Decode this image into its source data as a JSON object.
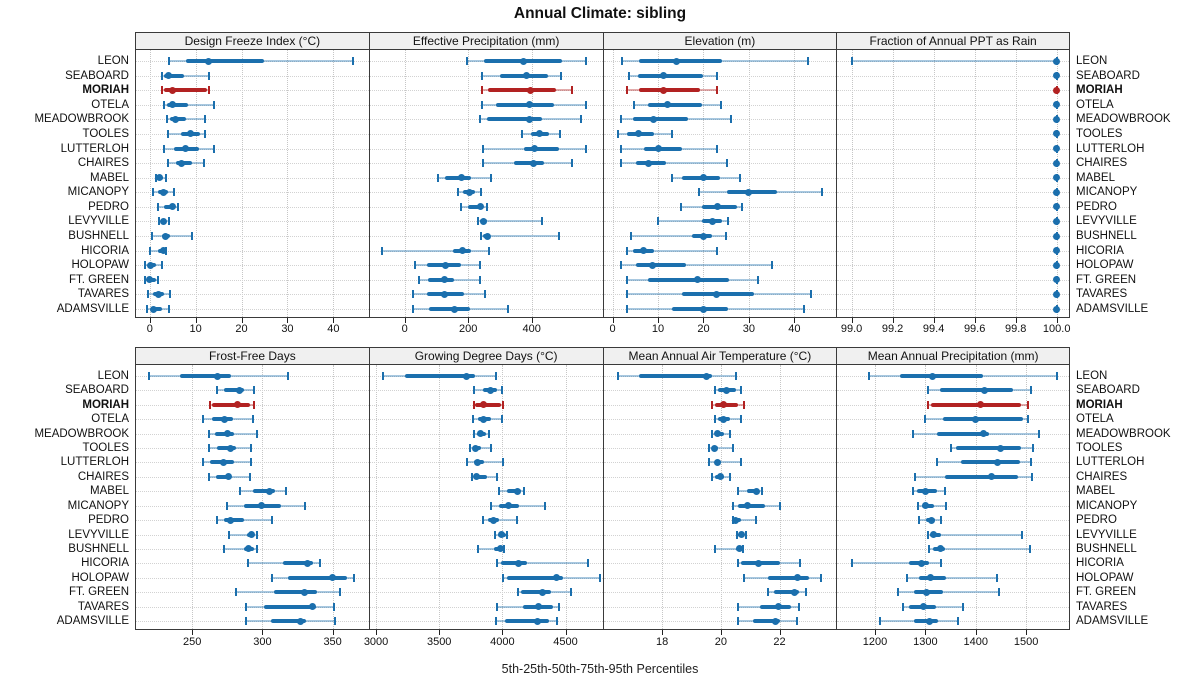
{
  "title": "Annual Climate: sibling",
  "caption": "5th-25th-50th-75th-95th Percentiles",
  "highlight_station": "MORIAH",
  "colors": {
    "point": "#1b6fad",
    "point_light": "rgba(27,111,173,0.38)",
    "highlight": "#b22222",
    "highlight_light": "rgba(178,34,34,0.38)",
    "header_bg": "#f0f0f0",
    "grid": "#c6c6c6",
    "border": "#3a3a3a"
  },
  "stations": [
    "LEON",
    "SEABOARD",
    "MORIAH",
    "OTELA",
    "MEADOWBROOK",
    "TOOLES",
    "LUTTERLOH",
    "CHAIRES",
    "MABEL",
    "MICANOPY",
    "PEDRO",
    "LEVYVILLE",
    "BUSHNELL",
    "HICORIA",
    "HOLOPAW",
    "FT. GREEN",
    "TAVARES",
    "ADAMSVILLE"
  ],
  "chart_data": {
    "type": "dotplot-trellis",
    "percentile_levels": [
      5,
      25,
      50,
      75,
      95
    ],
    "layout": "2 rows x 4 columns",
    "panels": [
      {
        "title": "Design Freeze Index (°C)",
        "xlim": [
          -3,
          47.5
        ],
        "ticks": [
          0,
          10,
          20,
          30,
          40
        ],
        "tick_labels": [
          "0",
          "10",
          "20",
          "30",
          "40"
        ],
        "series": [
          [
            4.1,
            7.8,
            12.9,
            25,
            44.2
          ],
          [
            2.7,
            3.2,
            4,
            7.5,
            12.8
          ],
          [
            2.7,
            3.2,
            4.9,
            12.5,
            13
          ],
          [
            3,
            3.7,
            4.9,
            8.3,
            14
          ],
          [
            3.7,
            4.5,
            5.7,
            8,
            12
          ],
          [
            3.9,
            6.9,
            8.8,
            10.9,
            12.1
          ],
          [
            3,
            5.2,
            7.7,
            10.7,
            14
          ],
          [
            3.9,
            5.7,
            7,
            9.2,
            11.8
          ],
          [
            1.3,
            1.7,
            2.2,
            2.8,
            3.5
          ],
          [
            0.6,
            1.7,
            2.9,
            3.9,
            5.2
          ],
          [
            1.9,
            3.2,
            4.9,
            5.6,
            6.2
          ],
          [
            2,
            2.5,
            2.9,
            3.6,
            4.2
          ],
          [
            0.4,
            2.7,
            3.5,
            4.4,
            9.2
          ],
          [
            0,
            1.9,
            2.9,
            3.4,
            3.5
          ],
          [
            -1.1,
            -0.4,
            0.1,
            1.4,
            2.7
          ],
          [
            -1.1,
            -0.6,
            -0.1,
            1.4,
            1.9
          ],
          [
            -0.3,
            0.6,
            2,
            3.2,
            4.4
          ],
          [
            -0.6,
            0.2,
            0.9,
            2.7,
            4.2
          ]
        ]
      },
      {
        "title": "Effective Precipitation (mm)",
        "xlim": [
          -110,
          620
        ],
        "ticks": [
          0,
          200,
          400
        ],
        "tick_labels": [
          "0",
          "200",
          "400"
        ],
        "series": [
          [
            195,
            250,
            375,
            497,
            570
          ],
          [
            243,
            300,
            385,
            450,
            492
          ],
          [
            245,
            262,
            395,
            478,
            528
          ],
          [
            245,
            287,
            394,
            470,
            572
          ],
          [
            236,
            258,
            392,
            432,
            554
          ],
          [
            369,
            398,
            426,
            455,
            489
          ],
          [
            247,
            377,
            410,
            486,
            570
          ],
          [
            247,
            344,
            405,
            440,
            528
          ],
          [
            104,
            127,
            179,
            210,
            273
          ],
          [
            167,
            184,
            203,
            221,
            240
          ],
          [
            177,
            200,
            238,
            247,
            260
          ],
          [
            231,
            236,
            247,
            258,
            434
          ],
          [
            241,
            247,
            260,
            268,
            486
          ],
          [
            -70,
            153,
            182,
            210,
            266
          ],
          [
            33,
            70,
            130,
            179,
            236
          ],
          [
            44,
            72,
            125,
            155,
            238
          ],
          [
            27,
            70,
            126,
            188,
            252
          ],
          [
            25,
            78,
            156,
            205,
            327
          ]
        ]
      },
      {
        "title": "Elevation (m)",
        "xlim": [
          -2,
          49
        ],
        "ticks": [
          0,
          10,
          20,
          30,
          40
        ],
        "tick_labels": [
          "0",
          "10",
          "20",
          "30",
          "40"
        ],
        "series": [
          [
            2,
            5.8,
            14,
            24,
            43
          ],
          [
            3.7,
            5.7,
            11.1,
            20,
            22.9
          ],
          [
            3.2,
            5.9,
            11.2,
            19.3,
            22.9
          ],
          [
            4.7,
            7.7,
            12,
            19.7,
            23.9
          ],
          [
            1.9,
            4.5,
            9,
            16.7,
            26.1
          ],
          [
            1.1,
            3.1,
            5.8,
            9.1,
            13.1
          ],
          [
            1.9,
            6.9,
            10,
            15.3,
            22.9
          ],
          [
            1.9,
            5.1,
            7.9,
            11.7,
            25.1
          ],
          [
            13,
            15.3,
            20,
            23.7,
            28.1
          ],
          [
            19,
            25.2,
            30,
            36.1,
            46
          ],
          [
            15.1,
            19.7,
            23.1,
            27.3,
            28.5
          ],
          [
            10,
            19.7,
            22,
            24.1,
            25.4
          ],
          [
            4,
            17.4,
            20,
            21.9,
            24.9
          ],
          [
            3.1,
            4.5,
            6.9,
            9.1,
            22.9
          ],
          [
            1.9,
            5.2,
            8.7,
            16.2,
            35
          ],
          [
            3.2,
            7.9,
            18.6,
            25.7,
            32
          ],
          [
            3.1,
            15.3,
            22.9,
            31.2,
            43.7
          ],
          [
            3.1,
            13,
            20,
            25.5,
            42.1
          ]
        ]
      },
      {
        "title": "Fraction of Annual PPT as Rain",
        "xlim": [
          98.93,
          100.06
        ],
        "ticks": [
          99.0,
          99.2,
          99.4,
          99.6,
          99.8,
          100.0
        ],
        "tick_labels": [
          "99.0",
          "99.2",
          "99.4",
          "99.6",
          "99.8",
          "100.0"
        ],
        "series": [
          [
            99.0,
            100,
            100,
            100,
            100
          ],
          [
            100,
            100,
            100,
            100,
            100
          ],
          [
            100,
            100,
            100,
            100,
            100
          ],
          [
            100,
            100,
            100,
            100,
            100
          ],
          [
            100,
            100,
            100,
            100,
            100
          ],
          [
            100,
            100,
            100,
            100,
            100
          ],
          [
            100,
            100,
            100,
            100,
            100
          ],
          [
            100,
            100,
            100,
            100,
            100
          ],
          [
            100,
            100,
            100,
            100,
            100
          ],
          [
            100,
            100,
            100,
            100,
            100
          ],
          [
            100,
            100,
            100,
            100,
            100
          ],
          [
            100,
            100,
            100,
            100,
            100
          ],
          [
            100,
            100,
            100,
            100,
            100
          ],
          [
            100,
            100,
            100,
            100,
            100
          ],
          [
            100,
            100,
            100,
            100,
            100
          ],
          [
            100,
            100,
            100,
            100,
            100
          ],
          [
            100,
            100,
            100,
            100,
            100
          ],
          [
            100,
            100,
            100,
            100,
            100
          ]
        ]
      },
      {
        "title": "Frost-Free Days",
        "xlim": [
          210,
          375
        ],
        "ticks": [
          250,
          300,
          350
        ],
        "tick_labels": [
          "250",
          "300",
          "350"
        ],
        "series": [
          [
            219,
            241,
            268,
            278,
            318
          ],
          [
            268,
            273,
            284,
            287,
            294
          ],
          [
            263,
            264,
            282,
            291,
            294
          ],
          [
            258,
            264,
            273,
            279,
            293
          ],
          [
            262,
            266,
            275,
            280,
            296
          ],
          [
            262,
            268,
            277,
            281,
            292
          ],
          [
            258,
            263,
            272,
            280,
            292
          ],
          [
            262,
            267,
            276,
            278,
            291
          ],
          [
            284,
            293,
            305,
            309,
            317
          ],
          [
            275,
            287,
            299,
            313,
            330
          ],
          [
            268,
            273,
            277,
            287,
            307
          ],
          [
            276,
            289,
            292,
            294,
            296
          ],
          [
            273,
            287,
            290,
            294,
            296
          ],
          [
            290,
            315,
            332,
            336,
            341
          ],
          [
            307,
            318,
            350,
            360,
            365
          ],
          [
            281,
            308,
            330,
            339,
            355
          ],
          [
            288,
            301,
            336,
            338,
            351
          ],
          [
            288,
            306,
            327,
            331,
            352
          ]
        ]
      },
      {
        "title": "Growing Degree Days (°C)",
        "xlim": [
          2950,
          4785
        ],
        "ticks": [
          3000,
          3500,
          4000,
          4500
        ],
        "tick_labels": [
          "3000",
          "3500",
          "4000",
          "4500"
        ],
        "series": [
          [
            3051,
            3228,
            3714,
            3784,
            3947
          ],
          [
            3773,
            3844,
            3904,
            3960,
            4000
          ],
          [
            3773,
            3781,
            3850,
            3990,
            4005
          ],
          [
            3765,
            3805,
            3851,
            3908,
            4000
          ],
          [
            3778,
            3799,
            3825,
            3869,
            3896
          ],
          [
            3747,
            3773,
            3791,
            3830,
            3908
          ],
          [
            3721,
            3778,
            3807,
            3856,
            4008
          ],
          [
            3757,
            3773,
            3799,
            3877,
            3961
          ],
          [
            3973,
            4038,
            4116,
            4148,
            4174
          ],
          [
            3908,
            3973,
            4046,
            4129,
            4337
          ],
          [
            3844,
            3883,
            3929,
            3973,
            4116
          ],
          [
            3942,
            3965,
            3992,
            4025,
            4038
          ],
          [
            3805,
            3934,
            3982,
            4005,
            4015
          ],
          [
            3955,
            3986,
            4129,
            4194,
            4675
          ],
          [
            4008,
            4038,
            4428,
            4480,
            4770
          ],
          [
            4122,
            4148,
            4319,
            4389,
            4545
          ],
          [
            3955,
            4163,
            4285,
            4402,
            4449
          ],
          [
            3947,
            4018,
            4277,
            4371,
            4434
          ]
        ]
      },
      {
        "title": "Mean Annual Air Temperature (°C)",
        "xlim": [
          16,
          23.9
        ],
        "ticks": [
          18,
          20,
          22
        ],
        "tick_labels": [
          "18",
          "20",
          "22"
        ],
        "series": [
          [
            16.5,
            17.2,
            19.5,
            19.7,
            20.5
          ],
          [
            19.8,
            19.9,
            20.2,
            20.5,
            20.7
          ],
          [
            19.7,
            19.8,
            20.1,
            20.6,
            20.8
          ],
          [
            19.8,
            19.9,
            20.1,
            20.3,
            20.7
          ],
          [
            19.7,
            19.8,
            19.9,
            20.1,
            20.3
          ],
          [
            19.6,
            19.7,
            19.8,
            19.9,
            20.4
          ],
          [
            19.6,
            19.8,
            19.9,
            20.0,
            20.7
          ],
          [
            19.7,
            19.8,
            20.0,
            20.1,
            20.3
          ],
          [
            20.6,
            20.9,
            21.2,
            21.3,
            21.4
          ],
          [
            20.4,
            20.6,
            20.9,
            21.5,
            22.0
          ],
          [
            20.4,
            20.45,
            20.5,
            20.7,
            21.2
          ],
          [
            20.55,
            20.6,
            20.7,
            20.8,
            20.85
          ],
          [
            19.8,
            20.5,
            20.65,
            20.7,
            20.75
          ],
          [
            20.6,
            20.7,
            21.3,
            22.0,
            22.7
          ],
          [
            20.8,
            21.6,
            22.6,
            23.0,
            23.4
          ],
          [
            21.6,
            21.8,
            22.5,
            22.65,
            22.9
          ],
          [
            20.6,
            21.35,
            21.95,
            22.4,
            22.65
          ],
          [
            20.6,
            21.1,
            21.85,
            22.0,
            22.6
          ]
        ]
      },
      {
        "title": "Mean Annual Precipitation (mm)",
        "xlim": [
          1125,
          1585
        ],
        "ticks": [
          1200,
          1300,
          1400,
          1500
        ],
        "tick_labels": [
          "1200",
          "1300",
          "1400",
          "1500"
        ],
        "series": [
          [
            1189,
            1249,
            1315,
            1414,
            1562
          ],
          [
            1305,
            1328,
            1417,
            1473,
            1510
          ],
          [
            1305,
            1312,
            1410,
            1490,
            1503
          ],
          [
            1300,
            1334,
            1400,
            1493,
            1504
          ],
          [
            1276,
            1323,
            1416,
            1426,
            1526
          ],
          [
            1350,
            1360,
            1449,
            1490,
            1514
          ],
          [
            1323,
            1371,
            1444,
            1488,
            1509
          ],
          [
            1279,
            1338,
            1431,
            1483,
            1511
          ],
          [
            1276,
            1284,
            1301,
            1323,
            1338
          ],
          [
            1285,
            1294,
            1301,
            1318,
            1340
          ],
          [
            1287,
            1301,
            1312,
            1320,
            1330
          ],
          [
            1305,
            1310,
            1317,
            1331,
            1492
          ],
          [
            1307,
            1315,
            1329,
            1338,
            1508
          ],
          [
            1154,
            1268,
            1293,
            1307,
            1330
          ],
          [
            1264,
            1287,
            1311,
            1340,
            1443
          ],
          [
            1246,
            1278,
            1302,
            1334,
            1447
          ],
          [
            1255,
            1268,
            1297,
            1321,
            1375
          ],
          [
            1209,
            1278,
            1308,
            1324,
            1364
          ]
        ]
      }
    ]
  }
}
